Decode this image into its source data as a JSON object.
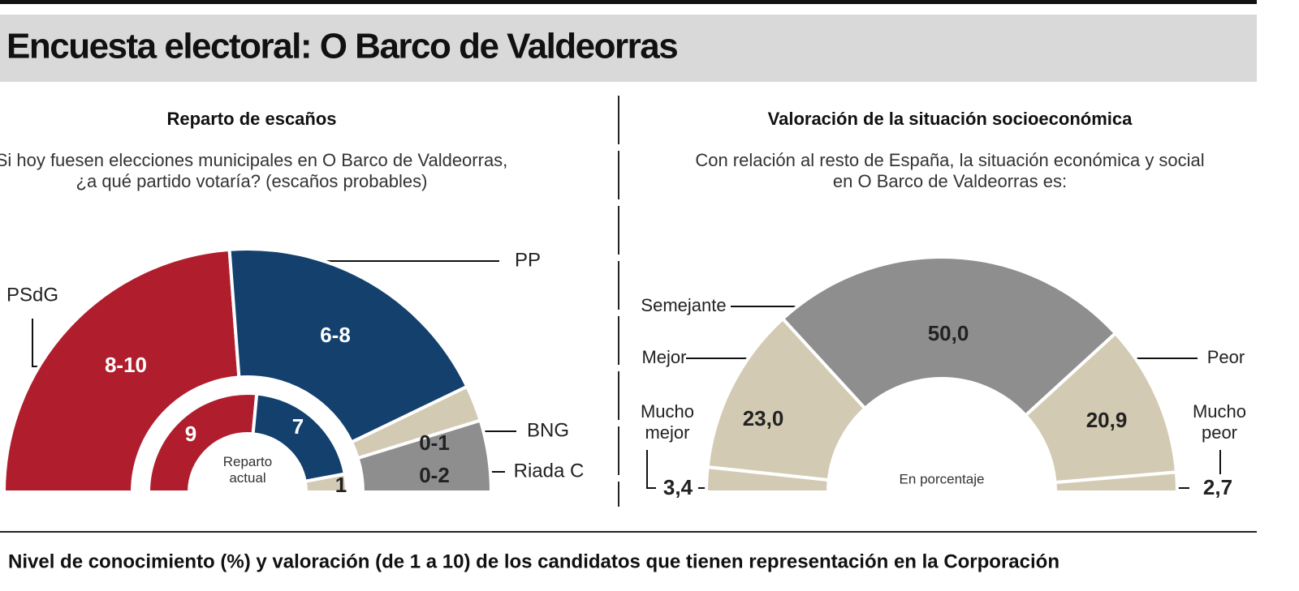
{
  "header": {
    "title": "Encuesta electoral: O Barco de Valdeorras"
  },
  "chart_data": [
    {
      "type": "semicircle",
      "title": "Reparto de escaños",
      "subtitle": "Si hoy fuesen elecciones municipales en O Barco de Valdeorras, ¿a qué partido votaría? (escaños probables)",
      "categories": [
        "PSdG",
        "PP",
        "BNG",
        "Riada C"
      ],
      "colors": [
        "#b01e2d",
        "#13406d",
        "#d3cab3",
        "#8e8e8e"
      ],
      "outer": {
        "values_low": [
          8,
          6,
          0,
          0
        ],
        "values_high": [
          10,
          8,
          1,
          2
        ],
        "value_labels": [
          "8-10",
          "6-8",
          "0-1",
          "0-2"
        ]
      },
      "inner": {
        "label": "Reparto actual",
        "values": [
          9,
          7,
          1
        ]
      }
    },
    {
      "type": "semicircle",
      "title": "Valoración de la situación socioeconómica",
      "subtitle": "Con relación al resto de España, la situación económica y social en O Barco de Valdeorras es:",
      "categories": [
        "Mucho mejor",
        "Mejor",
        "Semejante",
        "Peor",
        "Mucho peor"
      ],
      "values": [
        3.4,
        23.0,
        50.0,
        20.9,
        2.7
      ],
      "value_labels": [
        "3,4",
        "23,0",
        "50,0",
        "20,9",
        "2,7"
      ],
      "colors": [
        "#d3cab3",
        "#d3cab3",
        "#8e8e8e",
        "#d3cab3",
        "#d3cab3"
      ],
      "annotation": "En porcentaje"
    }
  ],
  "footer": {
    "text": "Nivel de conocimiento (%) y valoración (de 1 a 10) de los candidatos que tienen representación en la Corporación"
  }
}
